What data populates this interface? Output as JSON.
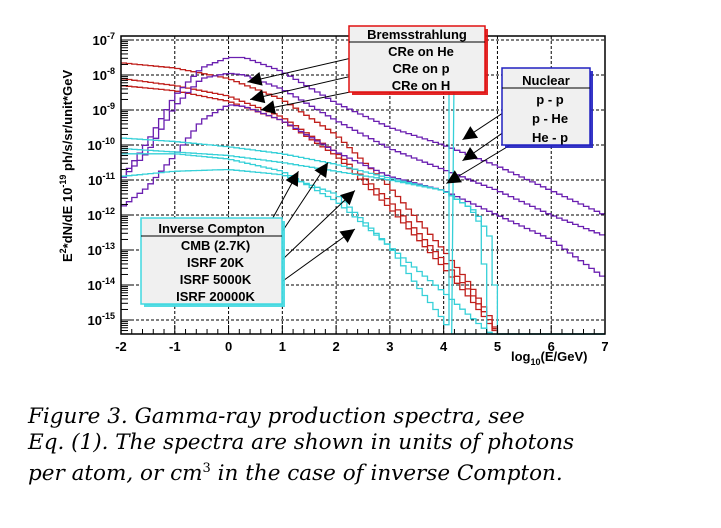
{
  "chart_data": {
    "type": "line",
    "style": "step-histogram",
    "title": "",
    "xlabel": "log10(E/GeV)",
    "ylabel": "E^2*dN/dE 10^-19 ph/s/sr/unit*GeV",
    "xlim": [
      -2,
      7
    ],
    "ylim_log10": [
      -15.4,
      -6.9
    ],
    "yscale": "log",
    "grid": true,
    "x_ticks": [
      "-2",
      "-1",
      "0",
      "1",
      "2",
      "3",
      "4",
      "5",
      "6",
      "7"
    ],
    "y_ticks": [
      {
        "base": "10",
        "exp": "-7",
        "value": -7
      },
      {
        "base": "10",
        "exp": "-8",
        "value": -8
      },
      {
        "base": "10",
        "exp": "-9",
        "value": -9
      },
      {
        "base": "10",
        "exp": "-10",
        "value": -10
      },
      {
        "base": "10",
        "exp": "-11",
        "value": -11
      },
      {
        "base": "10",
        "exp": "-12",
        "value": -12
      },
      {
        "base": "10",
        "exp": "-13",
        "value": -13
      },
      {
        "base": "10",
        "exp": "-14",
        "value": -14
      },
      {
        "base": "10",
        "exp": "-15",
        "value": -15
      }
    ],
    "series_groups": [
      {
        "group": "Bremsstrahlung",
        "color": "#c0201c",
        "series": [
          {
            "name": "CRe on He",
            "x": [
              -2,
              -1,
              0,
              1,
              2,
              3,
              4,
              4.5,
              4.9,
              5.0
            ],
            "log10_y": [
              -7.65,
              -7.8,
              -8.1,
              -8.7,
              -9.7,
              -11.2,
              -13.0,
              -14.0,
              -15.0,
              -15.4
            ]
          },
          {
            "name": "CRe on p",
            "x": [
              -2,
              -1,
              0,
              1,
              2,
              3,
              4,
              4.5,
              4.9,
              5.0
            ],
            "log10_y": [
              -8.1,
              -8.3,
              -8.6,
              -9.2,
              -10.2,
              -11.6,
              -13.3,
              -14.2,
              -15.1,
              -15.4
            ]
          },
          {
            "name": "CRe on H",
            "x": [
              -2,
              -1,
              0,
              1,
              2,
              3,
              4,
              4.5,
              4.9,
              5.0
            ],
            "log10_y": [
              -8.3,
              -8.45,
              -8.75,
              -9.3,
              -10.3,
              -11.8,
              -13.5,
              -14.4,
              -15.2,
              -15.4
            ]
          }
        ]
      },
      {
        "group": "Nuclear",
        "color": "#6a1fb0",
        "series": [
          {
            "name": "p - p",
            "x": [
              -2,
              -1.5,
              -1,
              -0.5,
              0,
              0.3,
              1,
              2,
              3,
              4,
              5,
              6,
              7
            ],
            "log10_y": [
              -11.0,
              -9.9,
              -8.6,
              -7.8,
              -7.5,
              -7.5,
              -7.9,
              -8.8,
              -9.5,
              -10.0,
              -10.6,
              -11.3,
              -12.0
            ]
          },
          {
            "name": "p - He",
            "x": [
              -2,
              -1.5,
              -1,
              -0.5,
              0,
              0.3,
              1,
              2,
              3,
              4,
              5,
              6,
              7
            ],
            "log10_y": [
              -11.0,
              -10.2,
              -8.9,
              -8.1,
              -7.95,
              -8.0,
              -8.4,
              -9.3,
              -10.1,
              -10.7,
              -11.3,
              -12.0,
              -12.6
            ]
          },
          {
            "name": "He - p",
            "x": [
              -2,
              -1.5,
              -1,
              -0.5,
              0,
              0.3,
              1,
              2,
              3,
              4,
              5,
              6,
              7
            ],
            "log10_y": [
              -11.8,
              -11.2,
              -10.3,
              -9.3,
              -8.85,
              -8.9,
              -9.3,
              -10.2,
              -10.9,
              -11.3,
              -12.0,
              -12.7,
              -13.8
            ]
          }
        ]
      },
      {
        "group": "Inverse Compton",
        "color": "#36d0d8",
        "series": [
          {
            "name": "CMB (2.7K)",
            "x": [
              -2,
              -1,
              0,
              1,
              2,
              3,
              3.5,
              4,
              4.15
            ],
            "log10_y": [
              -10.9,
              -10.75,
              -10.7,
              -10.85,
              -11.4,
              -12.9,
              -14.0,
              -15.0,
              -15.4
            ]
          },
          {
            "name": "ISRF 20K",
            "x": [
              -2,
              -1,
              0,
              1,
              2,
              3,
              4,
              4.5,
              4.8,
              4.9
            ],
            "log10_y": [
              -10.25,
              -10.25,
              -10.4,
              -10.75,
              -11.6,
              -12.9,
              -14.2,
              -14.9,
              -15.3,
              -15.4
            ]
          },
          {
            "name": "ISRF 5000K",
            "x": [
              -2,
              -1,
              0,
              1,
              2,
              3,
              4,
              4.5,
              4.7,
              4.8,
              4.85
            ],
            "log10_y": [
              -10.1,
              -10.2,
              -10.3,
              -10.5,
              -10.75,
              -11.0,
              -11.3,
              -11.8,
              -12.3,
              -14.5,
              -15.4
            ]
          },
          {
            "name": "ISRF 20000K",
            "x": [
              -2,
              -1,
              0,
              1,
              2,
              3,
              4,
              4.6,
              4.85,
              4.95,
              5.0
            ],
            "log10_y": [
              -9.8,
              -9.9,
              -10.05,
              -10.25,
              -10.55,
              -10.95,
              -11.3,
              -11.9,
              -12.6,
              -14.0,
              -15.4
            ]
          }
        ]
      }
    ],
    "legends": [
      {
        "title": "Bremsstrahlung",
        "entries": [
          "CRe on He",
          "CRe on p",
          "CRe on H"
        ],
        "border_color": "#e01010",
        "placement": "top-center"
      },
      {
        "title": "Nuclear",
        "entries": [
          "p - p",
          "p - He",
          "He - p"
        ],
        "border_color": "#2020c0",
        "placement": "top-right"
      },
      {
        "title": "Inverse Compton",
        "entries": [
          "CMB (2.7K)",
          "ISRF 20K",
          "ISRF 5000K",
          "ISRF 20000K"
        ],
        "border_color": "#40d8e0",
        "placement": "bottom-left"
      }
    ],
    "annotations": [
      {
        "label": "CRe on He",
        "arrow_to": {
          "x": 0.35,
          "log10_y": -8.2
        }
      },
      {
        "label": "CRe on p",
        "arrow_to": {
          "x": 0.4,
          "log10_y": -8.7
        }
      },
      {
        "label": "CRe on H",
        "arrow_to": {
          "x": 0.6,
          "log10_y": -9.0
        }
      },
      {
        "label": "p - p",
        "arrow_to": {
          "x": 4.35,
          "log10_y": -9.85
        }
      },
      {
        "label": "p - He",
        "arrow_to": {
          "x": 4.35,
          "log10_y": -10.45
        }
      },
      {
        "label": "He - p",
        "arrow_to": {
          "x": 4.05,
          "log10_y": -11.1
        }
      },
      {
        "label": "CMB (2.7K)",
        "arrow_to": {
          "x": 1.3,
          "log10_y": -10.75
        }
      },
      {
        "label": "ISRF 20K",
        "arrow_to": {
          "x": 1.85,
          "log10_y": -10.5
        }
      },
      {
        "label": "ISRF 5000K",
        "arrow_to": {
          "x": 2.35,
          "log10_y": -11.3
        }
      },
      {
        "label": "ISRF 20000K",
        "arrow_to": {
          "x": 2.35,
          "log10_y": -12.4
        }
      }
    ]
  },
  "caption": {
    "line1": "Figure 3.  Gamma-ray production spectra, see",
    "line2": "Eq. (1). The spectra are shown in units of photons",
    "line3_a": "per atom, or cm",
    "line3_sup": "3",
    "line3_b": " in the case of inverse Compton."
  }
}
